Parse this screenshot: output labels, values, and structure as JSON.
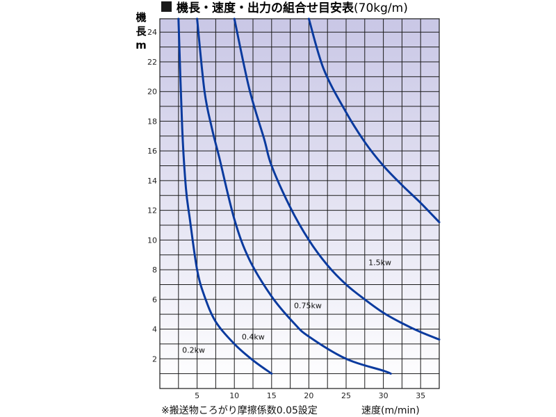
{
  "chart_data": {
    "type": "line",
    "title": "機長・速度・出力の組合せ目安表",
    "title_unit": "(70kg/m)",
    "ylabel": "機長m",
    "ylabel_chars": [
      "機",
      "長",
      "m"
    ],
    "xlabel": "速度(m/min)",
    "note": "※搬送物ころがり摩擦係数0.05設定",
    "xlim": [
      0,
      37.5
    ],
    "ylim": [
      0,
      24.9
    ],
    "xticks": [
      5,
      10,
      15,
      20,
      25,
      30,
      35
    ],
    "yticks": [
      2,
      4,
      6,
      8,
      10,
      12,
      14,
      16,
      18,
      20,
      22,
      24
    ],
    "grid": true,
    "colors": {
      "line": "#0a3a9e",
      "grid": "#1a1a1a",
      "bg_top": "#c9c7e6",
      "bg_bottom": "#ffffff"
    },
    "series": [
      {
        "name": "0.2kw",
        "points": [
          [
            2.5,
            24.9
          ],
          [
            3.0,
            17.5
          ],
          [
            3.5,
            13.5
          ],
          [
            4.0,
            11.5
          ],
          [
            5.0,
            8.0
          ],
          [
            6.0,
            6.2
          ],
          [
            7.5,
            4.5
          ],
          [
            10.0,
            3.0
          ],
          [
            12.5,
            1.9
          ],
          [
            15.0,
            1.0
          ]
        ]
      },
      {
        "name": "0.4kw",
        "points": [
          [
            5.0,
            24.9
          ],
          [
            6.0,
            20.0
          ],
          [
            7.0,
            17.5
          ],
          [
            8.0,
            15.5
          ],
          [
            10.0,
            11.4
          ],
          [
            12.0,
            8.7
          ],
          [
            15.0,
            6.2
          ],
          [
            18.0,
            4.4
          ],
          [
            20.0,
            3.5
          ],
          [
            25.0,
            2.0
          ],
          [
            30.0,
            1.2
          ],
          [
            31.0,
            1.0
          ]
        ]
      },
      {
        "name": "0.75kw",
        "points": [
          [
            10.0,
            24.9
          ],
          [
            12.0,
            20.2
          ],
          [
            14.0,
            16.8
          ],
          [
            15.0,
            15.0
          ],
          [
            17.5,
            12.2
          ],
          [
            20.0,
            10.0
          ],
          [
            22.5,
            8.3
          ],
          [
            25.0,
            7.0
          ],
          [
            27.5,
            6.0
          ],
          [
            30.0,
            5.1
          ],
          [
            32.5,
            4.4
          ],
          [
            35.0,
            3.8
          ],
          [
            37.5,
            3.3
          ]
        ]
      },
      {
        "name": "1.5kw",
        "points": [
          [
            20.0,
            24.9
          ],
          [
            22.0,
            21.5
          ],
          [
            25.0,
            18.6
          ],
          [
            27.5,
            16.6
          ],
          [
            30.0,
            15.0
          ],
          [
            32.5,
            13.7
          ],
          [
            35.0,
            12.5
          ],
          [
            37.5,
            11.2
          ]
        ]
      }
    ],
    "labels": [
      {
        "series": "0.2kw",
        "text": "0.2kw",
        "x": 3.0,
        "y": 2.4
      },
      {
        "series": "0.4kw",
        "text": "0.4kw",
        "x": 11.0,
        "y": 3.3
      },
      {
        "series": "0.75kw",
        "text": "0.75kw",
        "x": 18.0,
        "y": 5.4
      },
      {
        "series": "1.5kw",
        "text": "1.5kw",
        "x": 28.0,
        "y": 8.3
      }
    ]
  }
}
